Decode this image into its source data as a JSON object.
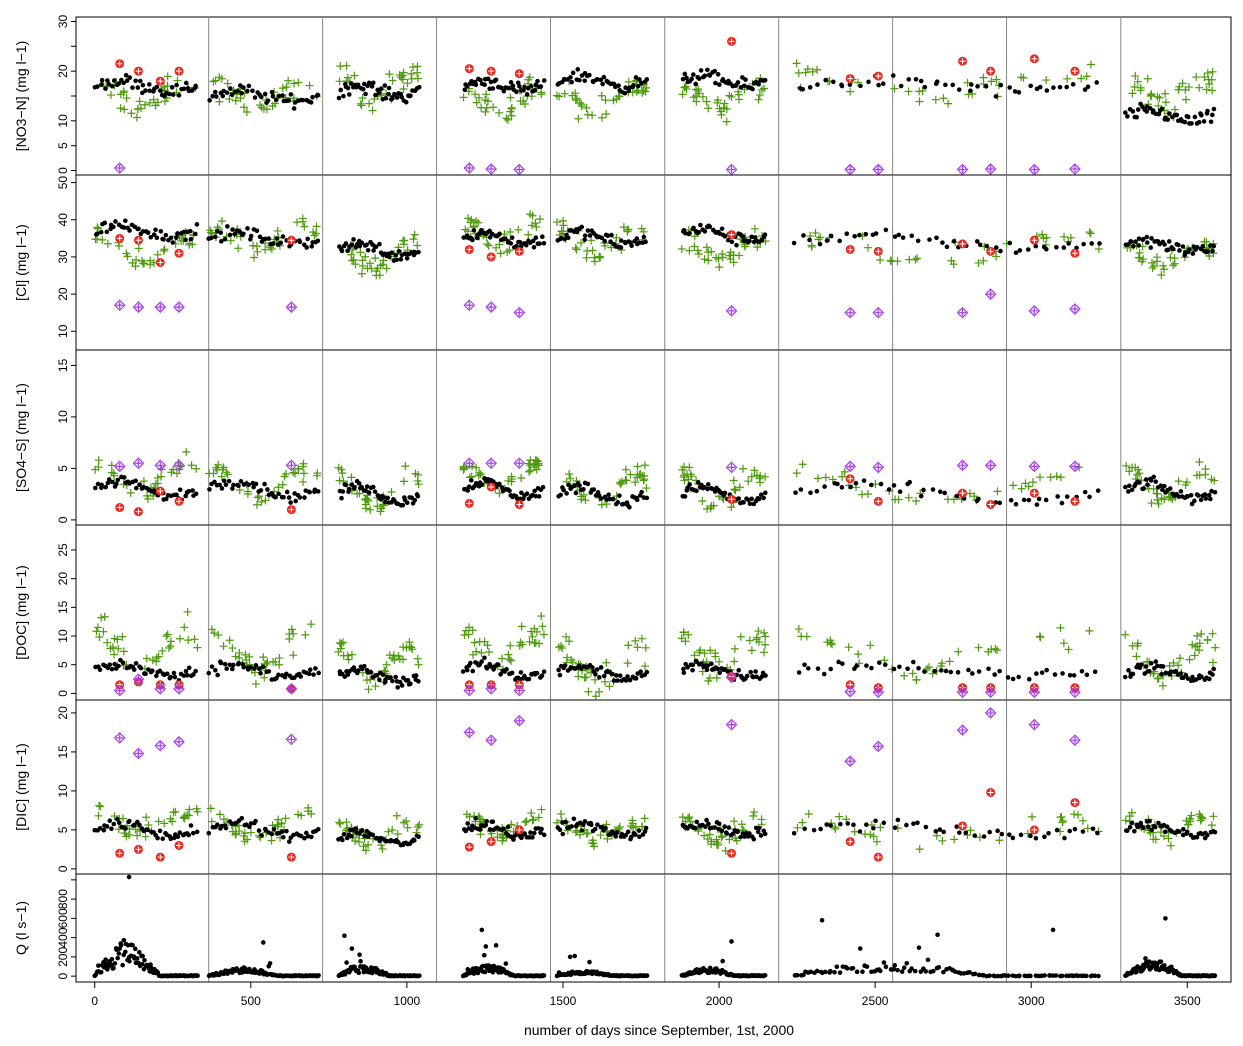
{
  "chart_data": {
    "type": "scatter",
    "xlabel": "number of days since September, 1st, 2000",
    "xlim": [
      -60,
      3640
    ],
    "x_ticks": [
      0,
      500,
      1000,
      1500,
      2000,
      2500,
      3000,
      3500
    ],
    "year_boundaries": [
      365,
      730,
      1095,
      1460,
      1826,
      2191,
      2556,
      2921,
      3287
    ],
    "colors": {
      "observed": "#000000",
      "series_a": "#4d9a0c",
      "series_b": "#e8281e",
      "series_c": "#a23bec"
    },
    "panels": [
      {
        "ylabel": "[NO3−N] (mg l−1)",
        "ylim": [
          -0.5,
          30.5
        ],
        "y_ticks": [
          0,
          5,
          10,
          15,
          20,
          25,
          30
        ],
        "y_tick_labels": [
          "0",
          "5",
          "10",
          "",
          "20",
          "",
          "30"
        ],
        "observed": {
          "base": [
            17,
            15,
            16,
            17,
            18,
            18,
            17,
            11
          ],
          "amp": 2.0,
          "noise": 2.0,
          "count": 45
        },
        "series_a": {
          "base": [
            15,
            15,
            17,
            14,
            14,
            15,
            17,
            16
          ],
          "amp": 4.0,
          "noise": 4.0,
          "count": 36
        },
        "series_b": {
          "x": [
            80,
            140,
            210,
            270,
            1200,
            1270,
            1360,
            2040,
            2420,
            2510,
            2780,
            2870,
            3010,
            3140
          ],
          "y": [
            21.5,
            20,
            18,
            20,
            20.5,
            20,
            19.5,
            26,
            18.5,
            19,
            22,
            20,
            22.5,
            20
          ]
        },
        "series_c": {
          "x": [
            80,
            1200,
            1270,
            1360,
            2040,
            2420,
            2510,
            2780,
            2870,
            3010,
            3140
          ],
          "y": [
            0.5,
            0.5,
            0.3,
            0.2,
            0.2,
            0.2,
            0.2,
            0.2,
            0.3,
            0.2,
            0.3
          ]
        }
      },
      {
        "ylabel": "[Cl] (mg l−1)",
        "ylim": [
          5.5,
          51.5
        ],
        "y_ticks": [
          10,
          20,
          30,
          40,
          50
        ],
        "y_tick_labels": [
          "10",
          "20",
          "30",
          "40",
          "50"
        ],
        "observed": {
          "base": [
            37,
            35,
            32,
            35,
            35,
            36,
            34,
            33
          ],
          "amp": 3.0,
          "noise": 2.5,
          "count": 45
        },
        "series_a": {
          "base": [
            32,
            35,
            30,
            36,
            34,
            32,
            32,
            30
          ],
          "amp": 5.0,
          "noise": 5.0,
          "count": 36
        },
        "series_b": {
          "x": [
            80,
            140,
            210,
            270,
            630,
            1200,
            1270,
            1360,
            2040,
            2420,
            2510,
            2780,
            2870,
            3010,
            3140
          ],
          "y": [
            35,
            34.5,
            28.5,
            31,
            34.5,
            32,
            30,
            31.5,
            36,
            32,
            31.5,
            33.5,
            31.5,
            34.5,
            31
          ]
        },
        "series_c": {
          "x": [
            80,
            140,
            210,
            270,
            630,
            1200,
            1270,
            1360,
            2040,
            2420,
            2510,
            2780,
            2870,
            3010,
            3140
          ],
          "y": [
            17,
            16.5,
            16.5,
            16.5,
            16.5,
            17,
            16.5,
            15,
            15.5,
            15,
            15,
            15,
            20,
            15.5,
            16
          ]
        }
      },
      {
        "ylabel": "[SO4−S] (mg l−1)",
        "ylim": [
          -0.3,
          16.3
        ],
        "y_ticks": [
          0,
          5,
          10,
          15
        ],
        "y_tick_labels": [
          "0",
          "5",
          "10",
          "15"
        ],
        "observed": {
          "base": [
            3,
            3,
            2.5,
            3,
            2.5,
            2.5,
            2.5,
            2.8
          ],
          "amp": 1.5,
          "noise": 0.8,
          "count": 45
        },
        "series_a": {
          "base": [
            4,
            3.5,
            3,
            4,
            3,
            3,
            3,
            3.5
          ],
          "amp": 2.5,
          "noise": 1.5,
          "count": 36
        },
        "series_b": {
          "x": [
            80,
            140,
            210,
            270,
            630,
            1200,
            1270,
            1360,
            2040,
            2420,
            2510,
            2780,
            2870,
            3010,
            3140
          ],
          "y": [
            1.2,
            0.8,
            2.8,
            1.8,
            1.0,
            1.6,
            3.2,
            1.5,
            2.0,
            4.0,
            1.8,
            2.6,
            1.5,
            2.6,
            1.8
          ]
        },
        "series_c": {
          "x": [
            80,
            140,
            210,
            270,
            630,
            1200,
            1270,
            1360,
            2040,
            2420,
            2510,
            2780,
            2870,
            3010,
            3140
          ],
          "y": [
            5.2,
            5.5,
            5.3,
            5.3,
            5.3,
            5.5,
            5.5,
            5.5,
            5.1,
            5.2,
            5.1,
            5.3,
            5.3,
            5.2,
            5.2
          ]
        }
      },
      {
        "ylabel": "[DOC] (mg l−1)",
        "ylim": [
          -0.8,
          29
        ],
        "y_ticks": [
          0,
          5,
          10,
          15,
          20,
          25
        ],
        "y_tick_labels": [
          "0",
          "5",
          "10",
          "15",
          "20",
          "25"
        ],
        "observed": {
          "base": [
            4,
            4,
            3,
            4,
            3.5,
            4,
            4,
            3.5
          ],
          "amp": 2.0,
          "noise": 1.5,
          "count": 45
        },
        "series_a": {
          "base": [
            8,
            7,
            5,
            8,
            5,
            7,
            7,
            6
          ],
          "amp": 5.0,
          "noise": 4.0,
          "count": 36
        },
        "series_b": {
          "x": [
            80,
            140,
            210,
            270,
            630,
            1200,
            1270,
            1360,
            2040,
            2420,
            2510,
            2780,
            2870,
            3010,
            3140
          ],
          "y": [
            1.5,
            2.0,
            1.5,
            1.5,
            0.8,
            1.5,
            1.5,
            1.5,
            3.0,
            1.5,
            1.0,
            1.0,
            1.0,
            1.0,
            1.0
          ]
        },
        "series_c": {
          "x": [
            80,
            140,
            210,
            270,
            630,
            1200,
            1270,
            1360,
            2040,
            2420,
            2510,
            2780,
            2870,
            3010,
            3140
          ],
          "y": [
            0.5,
            2.5,
            0.8,
            0.8,
            0.8,
            0.5,
            0.8,
            0.5,
            2.8,
            0.3,
            0.2,
            0.2,
            0.2,
            0.2,
            0.2
          ]
        }
      },
      {
        "ylabel": "[DIC] (mg l−1)",
        "ylim": [
          -0.4,
          21.4
        ],
        "y_ticks": [
          0,
          5,
          10,
          15,
          20
        ],
        "y_tick_labels": [
          "0",
          "5",
          "10",
          "15",
          "20"
        ],
        "observed": {
          "base": [
            5,
            5,
            4,
            5,
            5,
            5,
            5,
            5
          ],
          "amp": 1.5,
          "noise": 1.0,
          "count": 45
        },
        "series_a": {
          "base": [
            6,
            5.5,
            4.5,
            5.5,
            5,
            5,
            5,
            5.5
          ],
          "amp": 2.0,
          "noise": 2.0,
          "count": 36
        },
        "series_b": {
          "x": [
            80,
            140,
            210,
            270,
            630,
            1200,
            1270,
            1360,
            2040,
            2420,
            2510,
            2780,
            2870,
            3010,
            3140
          ],
          "y": [
            2.0,
            2.5,
            1.5,
            3.0,
            1.5,
            2.8,
            3.5,
            5.0,
            2.0,
            3.5,
            1.5,
            5.5,
            9.8,
            5.0,
            8.5
          ]
        },
        "series_c": {
          "x": [
            80,
            140,
            210,
            270,
            630,
            1200,
            1270,
            1360,
            2040,
            2420,
            2510,
            2780,
            2870,
            3010,
            3140
          ],
          "y": [
            16.8,
            14.8,
            15.8,
            16.3,
            16.6,
            17.5,
            16.5,
            19,
            18.5,
            13.8,
            15.7,
            17.8,
            20,
            18.5,
            16.5
          ]
        }
      },
      {
        "ylabel": "Q (l s−1)",
        "ylim": [
          -40,
          1040
        ],
        "y_ticks": [
          0,
          200,
          400,
          600,
          800,
          1000
        ],
        "y_tick_labels": [
          "0",
          "200",
          "400",
          "600",
          "800",
          ""
        ],
        "observed": {
          "base": [
            250,
            60,
            80,
            80,
            40,
            60,
            100,
            120
          ],
          "amp": 300,
          "noise": 90,
          "count": 110
        },
        "q_peaks": {
          "x": [
            110,
            540,
            800,
            1240,
            2040,
            2330,
            2700,
            3070,
            3430
          ],
          "y": [
            1050,
            350,
            420,
            480,
            360,
            580,
            430,
            480,
            600
          ]
        }
      }
    ]
  }
}
